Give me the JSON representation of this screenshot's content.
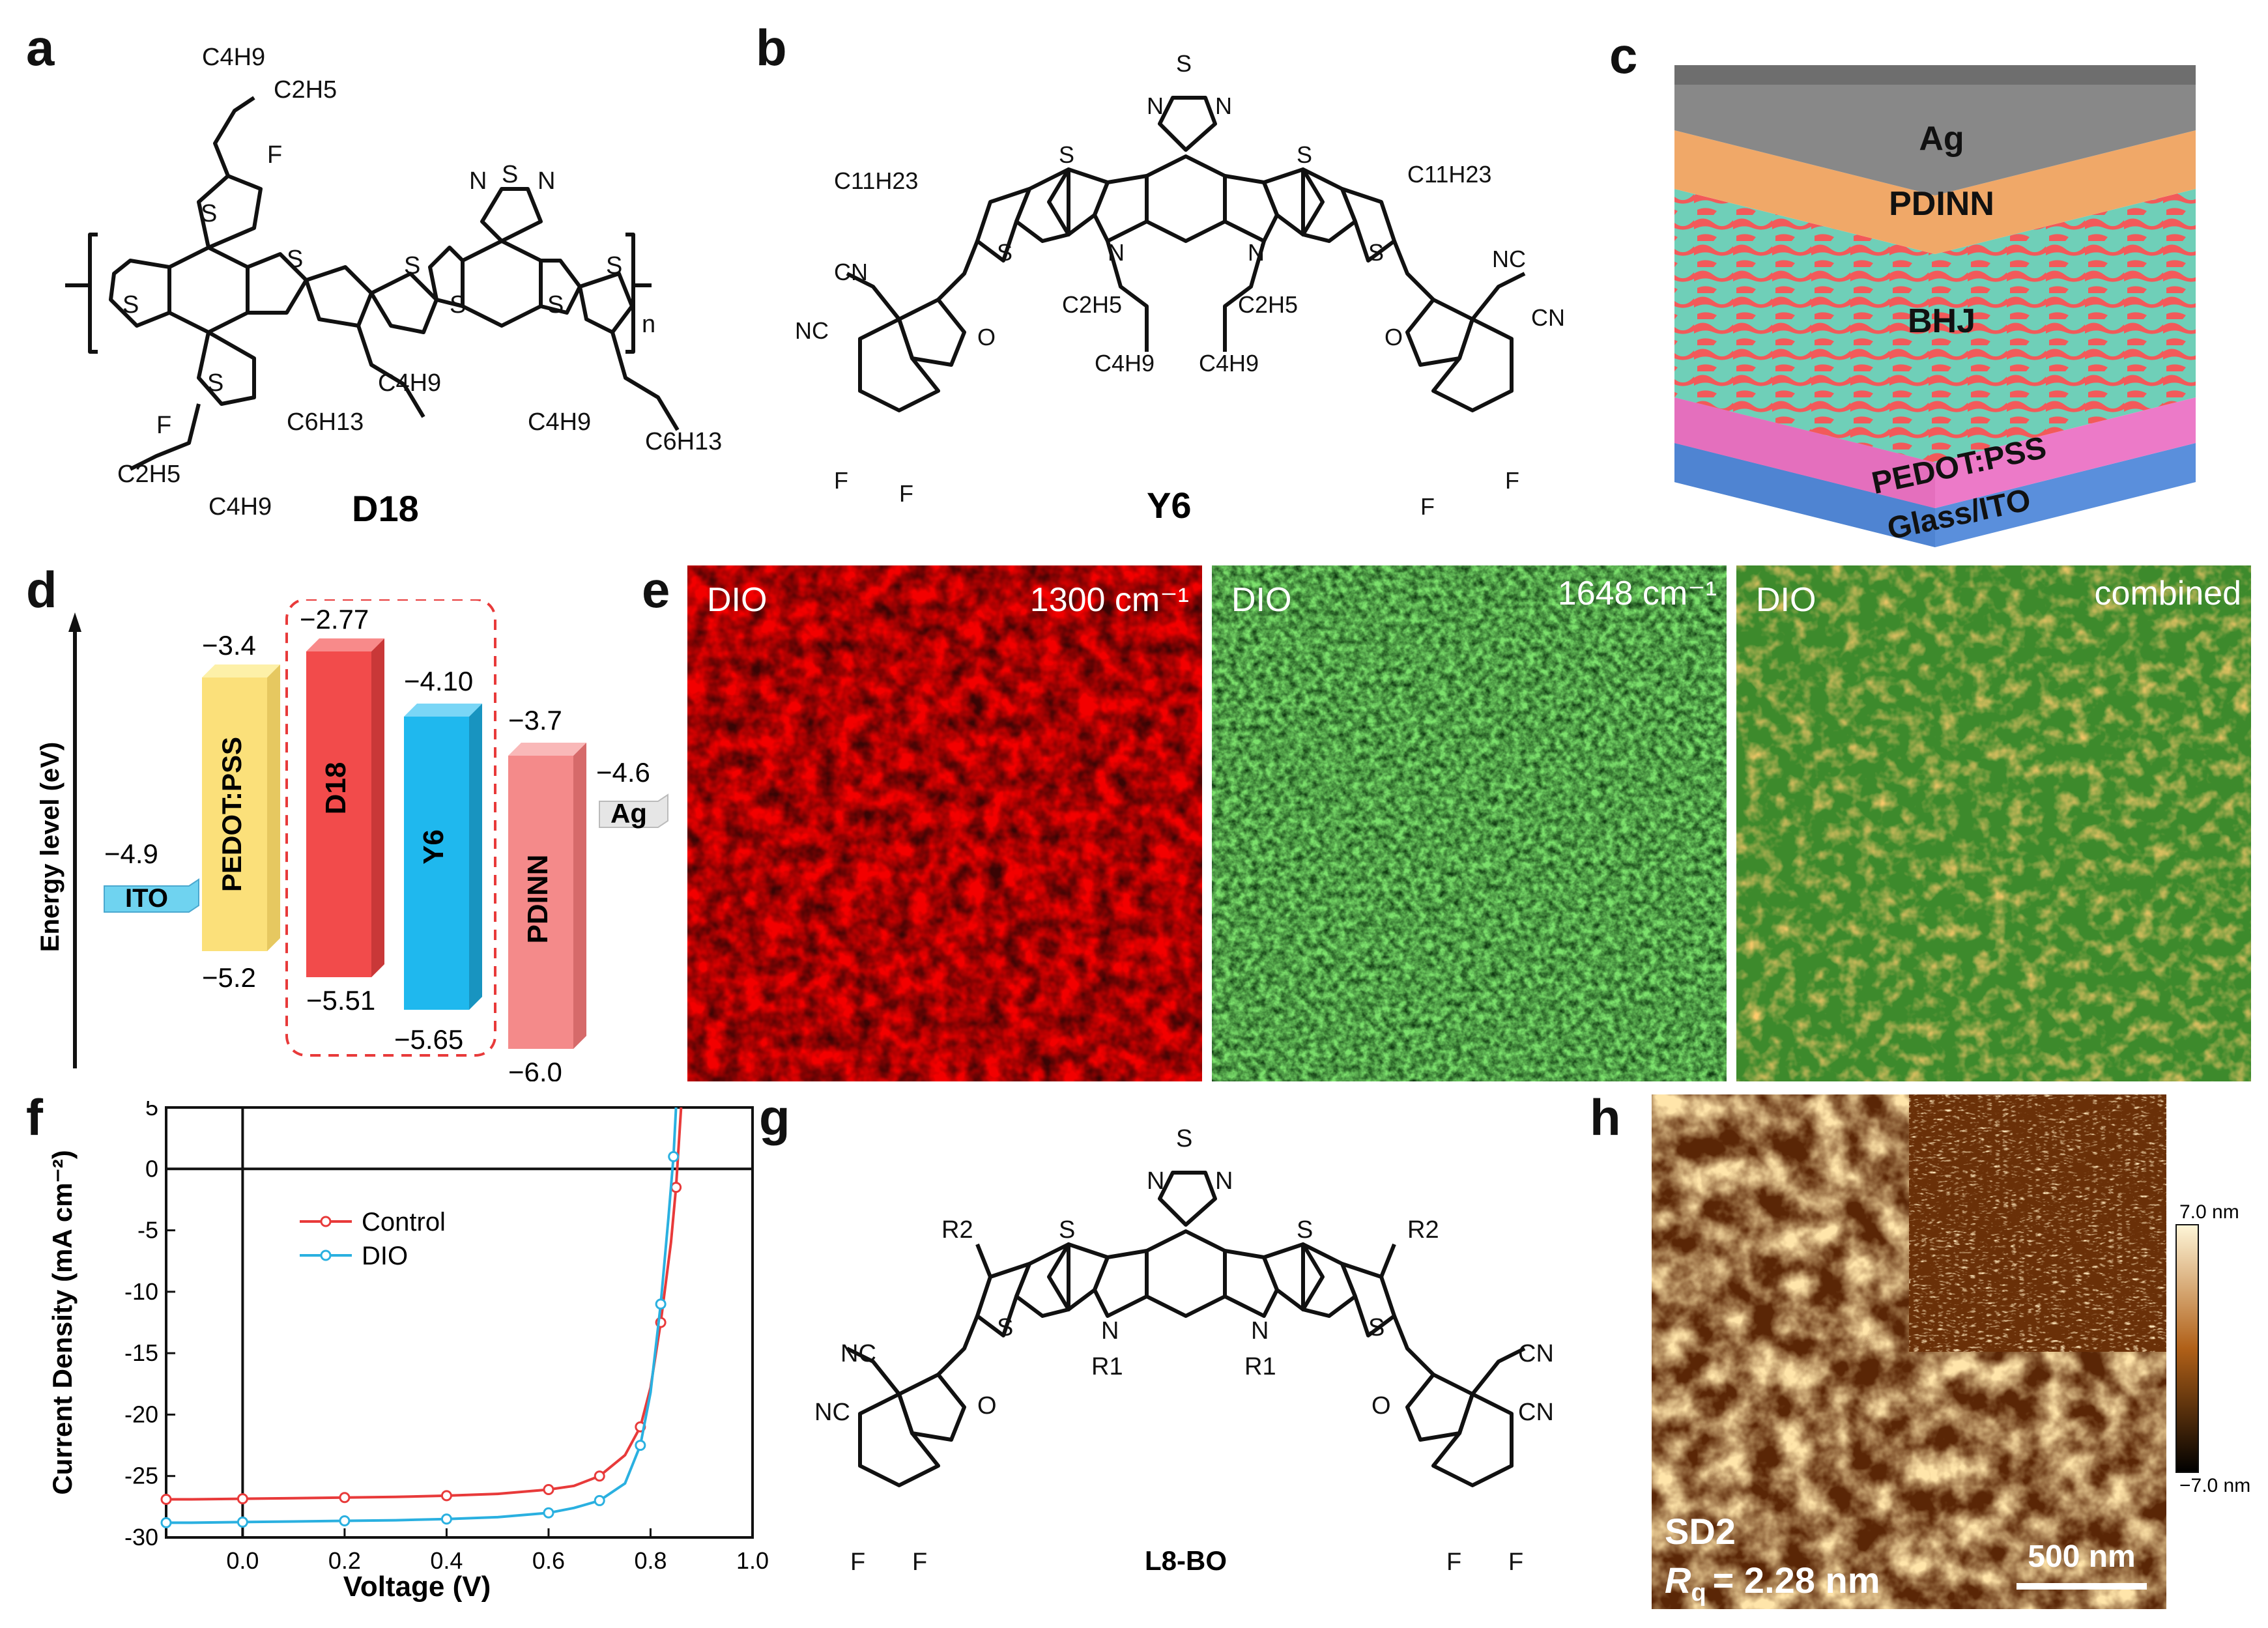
{
  "panels": {
    "a": "a",
    "b": "b",
    "c": "c",
    "d": "d",
    "e": "e",
    "f": "f",
    "g": "g",
    "h": "h"
  },
  "molecules": {
    "d18": {
      "name": "D18",
      "labels": {
        "c4h9_top": "C4H9",
        "c2h5_top": "C2H5",
        "f_top": "F",
        "s": "S",
        "n1": "N",
        "n2": "N",
        "sub_n": "n",
        "f_bottom": "F",
        "c2h5_bottom": "C2H5",
        "c4h9_bottom": "C4H9",
        "c4h9_mid": "C4H9",
        "c6h13_mid": "C6H13",
        "c4h9_right": "C4H9",
        "c6h13_right": "C6H13"
      }
    },
    "y6": {
      "name": "Y6",
      "labels": {
        "c11h23_left": "C11H23",
        "c11h23_right": "C11H23",
        "cn": "CN",
        "nc": "NC",
        "o": "O",
        "c2h5": "C2H5",
        "c4h9": "C4H9",
        "f": "F",
        "n": "N",
        "s": "S"
      }
    },
    "l8bo": {
      "name": "L8-BO",
      "labels": {
        "r1": "R1",
        "r2": "R2",
        "nc": "NC",
        "cn": "CN",
        "o": "O",
        "f": "F",
        "n": "N",
        "s": "S"
      }
    }
  },
  "device_stack": {
    "layers": [
      {
        "label": "Ag",
        "color": "#8a8a8a"
      },
      {
        "label": "PDINN",
        "color": "#f0a868"
      },
      {
        "label": "BHJ",
        "color": "#6fcfb8"
      },
      {
        "label": "PEDOT:PSS",
        "color": "#ec7ac8"
      },
      {
        "label": "Glass/ITO",
        "color": "#5a8fdc"
      }
    ]
  },
  "energy_diagram": {
    "ylabel": "Energy level (eV)",
    "materials": [
      {
        "name": "ITO",
        "lumo": null,
        "homo": null,
        "top_label": "−4.9",
        "bottom_label": "",
        "color": "#6fd3f0"
      },
      {
        "name": "PEDOT:PSS",
        "top_label": "−3.4",
        "bottom_label": "−5.2",
        "color": "#fbe07a"
      },
      {
        "name": "D18",
        "top_label": "−2.77",
        "bottom_label": "−5.51",
        "color": "#f24b4b"
      },
      {
        "name": "Y6",
        "top_label": "−4.10",
        "bottom_label": "−5.65",
        "color": "#1fb8ee"
      },
      {
        "name": "PDINN",
        "top_label": "−3.7",
        "bottom_label": "−6.0",
        "color": "#f48a8a"
      },
      {
        "name": "Ag",
        "top_label": "−4.6",
        "bottom_label": "",
        "color": "#e6e6e6"
      }
    ]
  },
  "raman": {
    "images": [
      {
        "title": "DIO",
        "label": "1300 cm⁻¹",
        "color": "#e01010"
      },
      {
        "title": "DIO",
        "label": "1648 cm⁻¹",
        "color": "#2ea82e"
      },
      {
        "title": "DIO",
        "label": "combined",
        "color": "#c8a040"
      }
    ]
  },
  "chart_data": {
    "type": "line",
    "title": "",
    "xlabel": "Voltage (V)",
    "ylabel": "Current Density (mA cm⁻²)",
    "xlim": [
      -0.15,
      1.0
    ],
    "ylim": [
      -30,
      5
    ],
    "xticks": [
      "0.0",
      "0.2",
      "0.4",
      "0.6",
      "0.8",
      "1.0"
    ],
    "yticks": [
      "5",
      "0",
      "-5",
      "-10",
      "-15",
      "-20",
      "-25",
      "-30"
    ],
    "legend": "center",
    "series": [
      {
        "name": "Control",
        "color": "#e83a3a",
        "x": [
          -0.15,
          -0.1,
          0.0,
          0.1,
          0.2,
          0.3,
          0.4,
          0.5,
          0.6,
          0.65,
          0.7,
          0.75,
          0.78,
          0.8,
          0.82,
          0.84,
          0.85,
          0.86
        ],
        "y": [
          -26.9,
          -26.9,
          -26.85,
          -26.8,
          -26.75,
          -26.7,
          -26.6,
          -26.45,
          -26.1,
          -25.8,
          -25.0,
          -23.3,
          -21.0,
          -17.8,
          -12.5,
          -6.0,
          -1.5,
          5.0
        ]
      },
      {
        "name": "DIO",
        "color": "#2ab0e0",
        "x": [
          -0.15,
          -0.1,
          0.0,
          0.1,
          0.2,
          0.3,
          0.4,
          0.5,
          0.6,
          0.65,
          0.7,
          0.75,
          0.78,
          0.8,
          0.82,
          0.835,
          0.845,
          0.85
        ],
        "y": [
          -28.8,
          -28.8,
          -28.75,
          -28.7,
          -28.65,
          -28.6,
          -28.5,
          -28.35,
          -28.0,
          -27.6,
          -27.0,
          -25.6,
          -22.5,
          -18.2,
          -11.0,
          -4.0,
          1.0,
          5.0
        ]
      }
    ]
  },
  "afm": {
    "sample": "SD2",
    "rq": "= 2.28 nm",
    "rq_label": "R",
    "rq_sub": "q",
    "scale_bar": "500 nm",
    "colorbar_max": "7.0 nm",
    "colorbar_min": "−7.0 nm"
  }
}
